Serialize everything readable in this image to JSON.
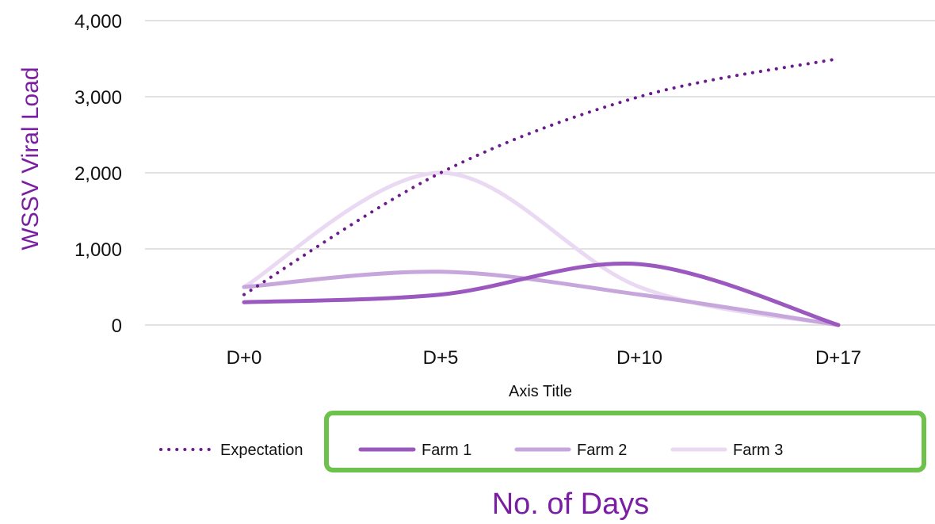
{
  "colors": {
    "expectation": "#6b1b8e",
    "farm1": "#9b59c0",
    "farm2": "#c7a6dc",
    "farm3": "#ead9f2",
    "grid": "#d9d9d9",
    "highlight_box": "#6cc24a",
    "title_purple": "#7a1fa2"
  },
  "chart_data": {
    "type": "line",
    "categories": [
      "D+0",
      "D+5",
      "D+10",
      "D+17"
    ],
    "series": [
      {
        "name": "Expectation",
        "values": [
          400,
          2000,
          3000,
          3500
        ],
        "style": "dotted"
      },
      {
        "name": "Farm 1",
        "values": [
          300,
          400,
          800,
          0
        ],
        "style": "solid"
      },
      {
        "name": "Farm 2",
        "values": [
          500,
          700,
          400,
          0
        ],
        "style": "solid"
      },
      {
        "name": "Farm 3",
        "values": [
          500,
          2000,
          500,
          0
        ],
        "style": "solid"
      }
    ],
    "xlabel": "Axis Title",
    "ylabel": "WSSV Viral Load",
    "ylim": [
      0,
      4000
    ],
    "yticks": [
      0,
      1000,
      2000,
      3000,
      4000
    ],
    "ytick_labels": [
      "0",
      "1,000",
      "2,000",
      "3,000",
      "4,000"
    ],
    "grid": true,
    "legend_position": "bottom",
    "smooth": true
  },
  "overlay": {
    "title": "No. of Days"
  }
}
